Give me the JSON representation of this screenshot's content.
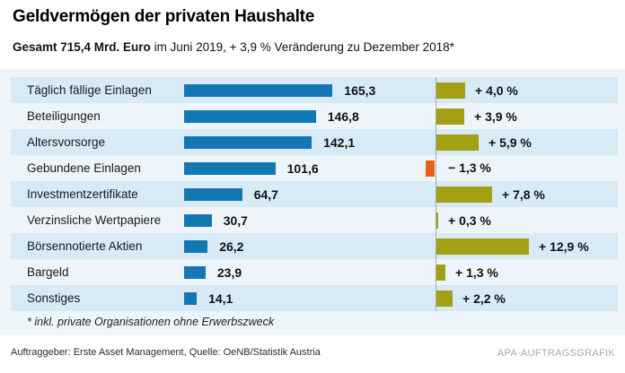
{
  "header": {
    "title": "Geldvermögen der privaten Haushalte",
    "subtitle_bold": "Gesamt 715,4 Mrd. Euro",
    "subtitle_rest": " im Juni 2019, + 3,9 % Veränderung zu Dezember 2018*"
  },
  "chart_data": {
    "type": "bar",
    "orientation": "horizontal",
    "title": "Geldvermögen der privaten Haushalte",
    "subtitle": "Gesamt 715,4 Mrd. Euro im Juni 2019, + 3,9 % Veränderung zu Dezember 2018*",
    "categories": [
      "Täglich fällige Einlagen",
      "Beteiligungen",
      "Altersvorsorge",
      "Gebundene Einlagen",
      "Investmentzertifikate",
      "Verzinsliche Wertpapiere",
      "Börsennotierte Aktien",
      "Bargeld",
      "Sonstiges"
    ],
    "series": [
      {
        "name": "Mrd. Euro (Juni 2019)",
        "values": [
          165.3,
          146.8,
          142.1,
          101.6,
          64.7,
          30.7,
          26.2,
          23.9,
          14.1
        ],
        "labels": [
          "165,3",
          "146,8",
          "142,1",
          "101,6",
          "64,7",
          "30,7",
          "26,2",
          "23,9",
          "14,1"
        ]
      },
      {
        "name": "Veränderung zu Dezember 2018 (%)",
        "values": [
          4.0,
          3.9,
          5.9,
          -1.3,
          7.8,
          0.3,
          12.9,
          1.3,
          2.2
        ],
        "labels": [
          "+ 4,0 %",
          "+ 3,9 %",
          "+ 5,9 %",
          "− 1,3 %",
          "+ 7,8 %",
          "+ 0,3 %",
          "+ 12,9 %",
          "+ 1,3 %",
          "+ 2,2 %"
        ]
      }
    ],
    "colors": {
      "value_bar": "#1377b4",
      "positive_bar": "#a3a014",
      "negative_bar": "#e95f14",
      "row_stripe": "#d7eaf6",
      "band_bg": "#edf5fb",
      "axis_line": "#9fa8ad"
    },
    "legend": false,
    "grid": false
  },
  "footnote": "* inkl. private Organisationen ohne Erwerbszweck",
  "footer": {
    "credits": "Auftraggeber: Erste Asset Management, Quelle: OeNB/Statistik Austria",
    "brand": "APA-AUFTRAGSGRAFIK"
  }
}
